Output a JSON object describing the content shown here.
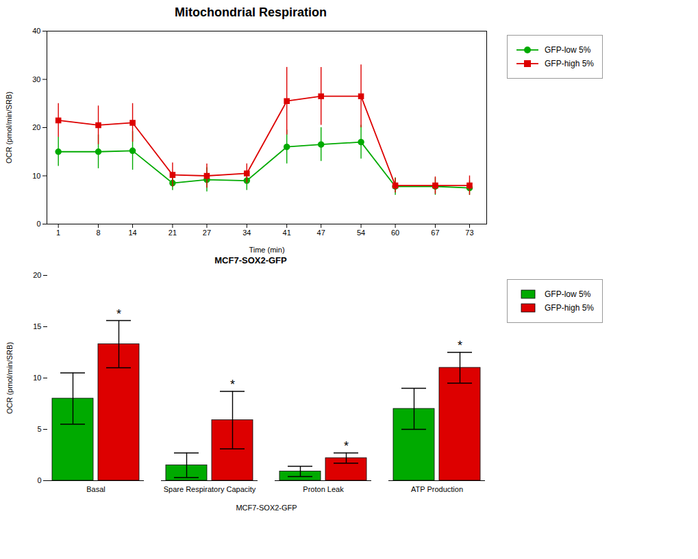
{
  "chart_data": [
    {
      "type": "line",
      "title": "Mitochondrial Respiration",
      "xlabel": "Time (min)",
      "ylabel": "OCR (pmol/min/SRB)",
      "x": [
        1,
        8,
        14,
        21,
        27,
        34,
        41,
        47,
        54,
        60,
        67,
        73
      ],
      "series": [
        {
          "name": "GFP-low 5%",
          "color": "#00AA00",
          "marker": "circle",
          "values": [
            15.0,
            15.0,
            15.2,
            8.5,
            9.2,
            9.0,
            16.0,
            16.5,
            17.0,
            7.8,
            7.8,
            7.5
          ],
          "errors": [
            3.0,
            3.5,
            4.0,
            1.5,
            2.5,
            2.0,
            3.5,
            3.5,
            3.5,
            1.8,
            1.8,
            1.5
          ]
        },
        {
          "name": "GFP-high 5%",
          "color": "#DD0000",
          "marker": "square",
          "values": [
            21.5,
            20.5,
            21.0,
            10.2,
            10.0,
            10.5,
            25.5,
            26.5,
            26.5,
            8.0,
            8.0,
            8.0
          ],
          "errors": [
            3.5,
            4.0,
            4.0,
            2.5,
            2.5,
            2.0,
            7.0,
            6.0,
            6.5,
            1.5,
            1.8,
            2.0
          ]
        }
      ],
      "xlim": [
        -1,
        76
      ],
      "xticks": [
        1,
        8,
        14,
        21,
        27,
        34,
        41,
        47,
        54,
        60,
        67,
        73
      ],
      "ylim": [
        0,
        40
      ],
      "yticks": [
        0,
        10,
        20,
        30,
        40
      ],
      "grid": false,
      "legend": "right"
    },
    {
      "type": "bar",
      "subtitle": "MCF7-SOX2-GFP",
      "xlabel": "MCF7-SOX2-GFP",
      "ylabel": "OCR (pmol/min/SRB)",
      "categories": [
        "Basal",
        "Spare Respiratory Capacity",
        "Proton Leak",
        "ATP Production"
      ],
      "series": [
        {
          "name": "GFP-low 5%",
          "color": "#00AA00",
          "values": [
            8.0,
            1.5,
            0.9,
            7.0
          ],
          "errors": [
            2.5,
            1.2,
            0.5,
            2.0
          ]
        },
        {
          "name": "GFP-high 5%",
          "color": "#DD0000",
          "values": [
            13.3,
            5.9,
            2.2,
            11.0
          ],
          "errors": [
            2.3,
            2.8,
            0.5,
            1.5
          ]
        }
      ],
      "ylim": [
        0,
        20
      ],
      "yticks": [
        0,
        5,
        10,
        15,
        20
      ],
      "grid": false,
      "legend": "right",
      "annotations": [
        {
          "text": "*",
          "category": "Basal",
          "series": "GFP-high 5%"
        },
        {
          "text": "*",
          "category": "Spare Respiratory Capacity",
          "series": "GFP-high 5%"
        },
        {
          "text": "*",
          "category": "Proton Leak",
          "series": "GFP-high 5%"
        },
        {
          "text": "*",
          "category": "ATP Production",
          "series": "GFP-high 5%"
        }
      ]
    }
  ]
}
